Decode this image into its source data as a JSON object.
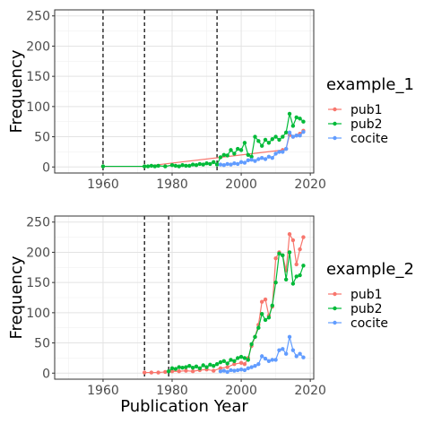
{
  "chart_data": [
    {
      "type": "line",
      "legend_title": "example_1",
      "ylabel": "Frequency",
      "xlabel": "",
      "xlim": [
        1946,
        2021
      ],
      "ylim": [
        -10,
        260
      ],
      "xticks": [
        1960,
        1980,
        2000,
        2020
      ],
      "yticks": [
        0,
        50,
        100,
        150,
        200,
        250
      ],
      "vlines": [
        1960,
        1972,
        1993
      ],
      "grid": true,
      "legend_position": "right",
      "series": [
        {
          "name": "pub1",
          "color": "#F8766D",
          "x": [
            1960,
            1972,
            2012,
            2013,
            2014,
            2015,
            2016,
            2017,
            2018
          ],
          "y": [
            1,
            1,
            28,
            30,
            53,
            50,
            52,
            55,
            60
          ]
        },
        {
          "name": "pub2",
          "color": "#00BA38",
          "x": [
            1960,
            1972,
            1973,
            1974,
            1975,
            1976,
            1978,
            1980,
            1981,
            1982,
            1983,
            1984,
            1985,
            1986,
            1987,
            1988,
            1989,
            1990,
            1991,
            1992,
            1993,
            1994,
            1995,
            1996,
            1997,
            1998,
            1999,
            2000,
            2001,
            2002,
            2003,
            2004,
            2005,
            2006,
            2007,
            2008,
            2009,
            2010,
            2011,
            2012,
            2013,
            2014,
            2015,
            2016,
            2017,
            2018
          ],
          "y": [
            1,
            1,
            1,
            2,
            1,
            2,
            1,
            3,
            2,
            1,
            3,
            2,
            2,
            4,
            3,
            5,
            4,
            6,
            5,
            8,
            4,
            16,
            20,
            19,
            28,
            22,
            30,
            28,
            40,
            20,
            17,
            50,
            43,
            35,
            45,
            40,
            46,
            50,
            45,
            50,
            57,
            88,
            68,
            82,
            80,
            75
          ]
        },
        {
          "name": "cocite",
          "color": "#619CFF",
          "x": [
            1994,
            1995,
            1996,
            1997,
            1998,
            1999,
            2000,
            2001,
            2002,
            2003,
            2004,
            2005,
            2006,
            2007,
            2008,
            2009,
            2010,
            2011,
            2012,
            2013,
            2014,
            2015,
            2016,
            2017,
            2018
          ],
          "y": [
            4,
            3,
            5,
            4,
            6,
            5,
            8,
            7,
            11,
            12,
            10,
            13,
            15,
            13,
            17,
            15,
            22,
            25,
            25,
            30,
            57,
            50,
            52,
            52,
            58
          ]
        }
      ]
    },
    {
      "type": "line",
      "legend_title": "example_2",
      "ylabel": "Frequency",
      "xlabel": "Publication Year",
      "xlim": [
        1946,
        2021
      ],
      "ylim": [
        -10,
        260
      ],
      "xticks": [
        1960,
        1980,
        2000,
        2020
      ],
      "yticks": [
        0,
        50,
        100,
        150,
        200,
        250
      ],
      "vlines": [
        1972,
        1979
      ],
      "grid": true,
      "legend_position": "right",
      "series": [
        {
          "name": "pub1",
          "color": "#F8766D",
          "x": [
            1972,
            1974,
            1976,
            1978,
            1980,
            1982,
            1984,
            1986,
            1988,
            1990,
            1992,
            1994,
            1996,
            1998,
            2000,
            2001,
            2002,
            2003,
            2004,
            2005,
            2006,
            2007,
            2008,
            2009,
            2010,
            2011,
            2012,
            2013,
            2014,
            2015,
            2016,
            2017,
            2018
          ],
          "y": [
            1,
            1,
            1,
            2,
            3,
            3,
            4,
            3,
            5,
            6,
            4,
            8,
            10,
            15,
            17,
            15,
            25,
            45,
            60,
            80,
            118,
            122,
            95,
            110,
            190,
            200,
            195,
            170,
            230,
            220,
            180,
            205,
            225
          ]
        },
        {
          "name": "pub2",
          "color": "#00BA38",
          "x": [
            1979,
            1980,
            1981,
            1982,
            1983,
            1984,
            1985,
            1986,
            1987,
            1988,
            1989,
            1990,
            1991,
            1992,
            1993,
            1994,
            1995,
            1996,
            1997,
            1998,
            1999,
            2000,
            2001,
            2002,
            2003,
            2004,
            2005,
            2006,
            2007,
            2008,
            2009,
            2010,
            2011,
            2012,
            2013,
            2014,
            2015,
            2016,
            2017,
            2018
          ],
          "y": [
            3,
            8,
            7,
            10,
            9,
            10,
            12,
            9,
            11,
            8,
            13,
            10,
            14,
            12,
            15,
            18,
            20,
            16,
            22,
            20,
            25,
            27,
            25,
            22,
            48,
            60,
            75,
            98,
            88,
            92,
            112,
            150,
            198,
            195,
            155,
            200,
            148,
            160,
            162,
            178
          ]
        },
        {
          "name": "cocite",
          "color": "#619CFF",
          "x": [
            1994,
            1995,
            1996,
            1997,
            1998,
            1999,
            2000,
            2001,
            2002,
            2003,
            2004,
            2005,
            2006,
            2007,
            2008,
            2009,
            2010,
            2011,
            2012,
            2013,
            2014,
            2015,
            2016,
            2017,
            2018
          ],
          "y": [
            3,
            4,
            2,
            5,
            4,
            5,
            6,
            5,
            8,
            10,
            12,
            15,
            28,
            24,
            20,
            22,
            22,
            38,
            40,
            32,
            60,
            38,
            28,
            32,
            26
          ]
        }
      ]
    }
  ]
}
